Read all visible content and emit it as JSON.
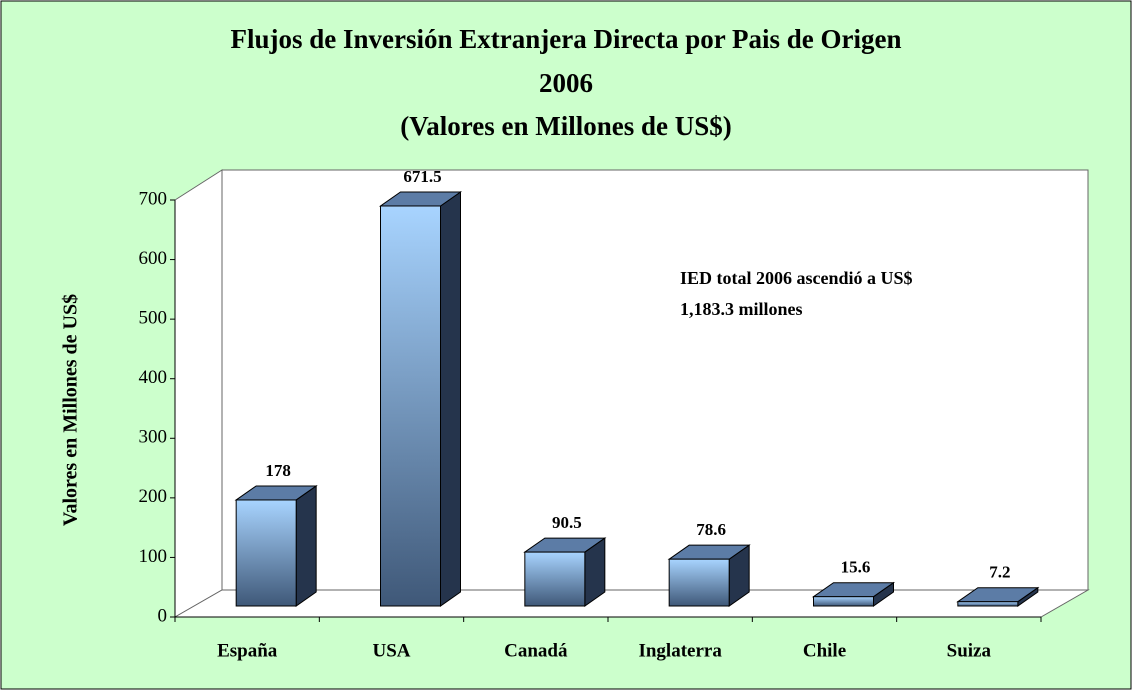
{
  "chart_data": {
    "type": "bar3d",
    "title": [
      "Flujos de Inversión Extranjera Directa por Pais de Origen",
      "2006",
      "(Valores en Millones de US$)"
    ],
    "y_label": "Valores en Millones de US$",
    "annotation": [
      "IED total 2006 ascendió a US$",
      "1,183.3 millones"
    ],
    "categories": [
      "España",
      "USA",
      "Canadá",
      "Inglaterra",
      "Chile",
      "Suiza"
    ],
    "values": [
      178,
      671.5,
      90.5,
      78.6,
      15.6,
      7.2
    ],
    "color": "#7fa8d8",
    "ylim": [
      0,
      700
    ],
    "yticks": [
      0,
      100,
      200,
      300,
      400,
      500,
      600,
      700
    ],
    "grid": false
  }
}
